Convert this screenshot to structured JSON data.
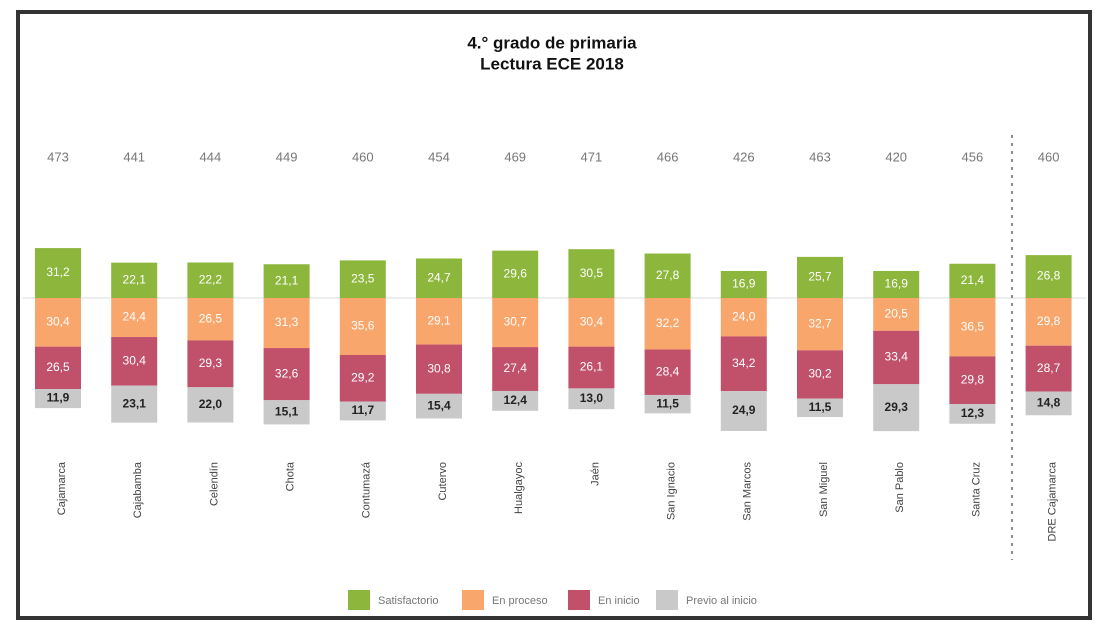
{
  "chart_data": {
    "type": "bar",
    "title": "4.° grado de primaria",
    "subtitle": "Lectura ECE 2018",
    "categories": [
      "Cajamarca",
      "Cajabamba",
      "Celendín",
      "Chota",
      "Contumazá",
      "Cutervo",
      "Hualgayoc",
      "Jaén",
      "San Ignacio",
      "San Marcos",
      "San Miguel",
      "San Pablo",
      "Santa Cruz",
      "DRE Cajamarca"
    ],
    "scores": [
      473,
      441,
      444,
      449,
      460,
      454,
      469,
      471,
      466,
      426,
      463,
      420,
      456,
      460
    ],
    "series": [
      {
        "name": "Satisfactorio",
        "color": "#8db63c",
        "values": [
          31.2,
          22.1,
          22.2,
          21.1,
          23.5,
          24.7,
          29.6,
          30.5,
          27.8,
          16.9,
          25.7,
          16.9,
          21.4,
          26.8
        ],
        "value_labels": [
          "31,2",
          "22,1",
          "22,2",
          "21,1",
          "23,5",
          "24,7",
          "29,6",
          "30,5",
          "27,8",
          "16,9",
          "25,7",
          "16,9",
          "21,4",
          "26,8"
        ]
      },
      {
        "name": "En proceso",
        "color": "#f9a66c",
        "values": [
          30.4,
          24.4,
          26.5,
          31.3,
          35.6,
          29.1,
          30.7,
          30.4,
          32.2,
          24.0,
          32.7,
          20.5,
          36.5,
          29.8
        ],
        "value_labels": [
          "30,4",
          "24,4",
          "26,5",
          "31,3",
          "35,6",
          "29,1",
          "30,7",
          "30,4",
          "32,2",
          "24,0",
          "32,7",
          "20,5",
          "36,5",
          "29,8"
        ]
      },
      {
        "name": "En inicio",
        "color": "#c1506b",
        "values": [
          26.5,
          30.4,
          29.3,
          32.6,
          29.2,
          30.8,
          27.4,
          26.1,
          28.4,
          34.2,
          30.2,
          33.4,
          29.8,
          28.7
        ],
        "value_labels": [
          "26,5",
          "30,4",
          "29,3",
          "32,6",
          "29,2",
          "30,8",
          "27,4",
          "26,1",
          "28,4",
          "34,2",
          "30,2",
          "33,4",
          "29,8",
          "28,7"
        ]
      },
      {
        "name": "Previo al inicio",
        "color": "#c9c9c9",
        "values": [
          11.9,
          23.1,
          22.0,
          15.1,
          11.7,
          15.4,
          12.4,
          13.0,
          11.5,
          24.9,
          11.5,
          29.3,
          12.3,
          14.8
        ],
        "value_labels": [
          "11,9",
          "23,1",
          "22,0",
          "15,1",
          "11,7",
          "15,4",
          "12,4",
          "13,0",
          "11,5",
          "24,9",
          "11,5",
          "29,3",
          "12,3",
          "14,8"
        ]
      }
    ]
  }
}
